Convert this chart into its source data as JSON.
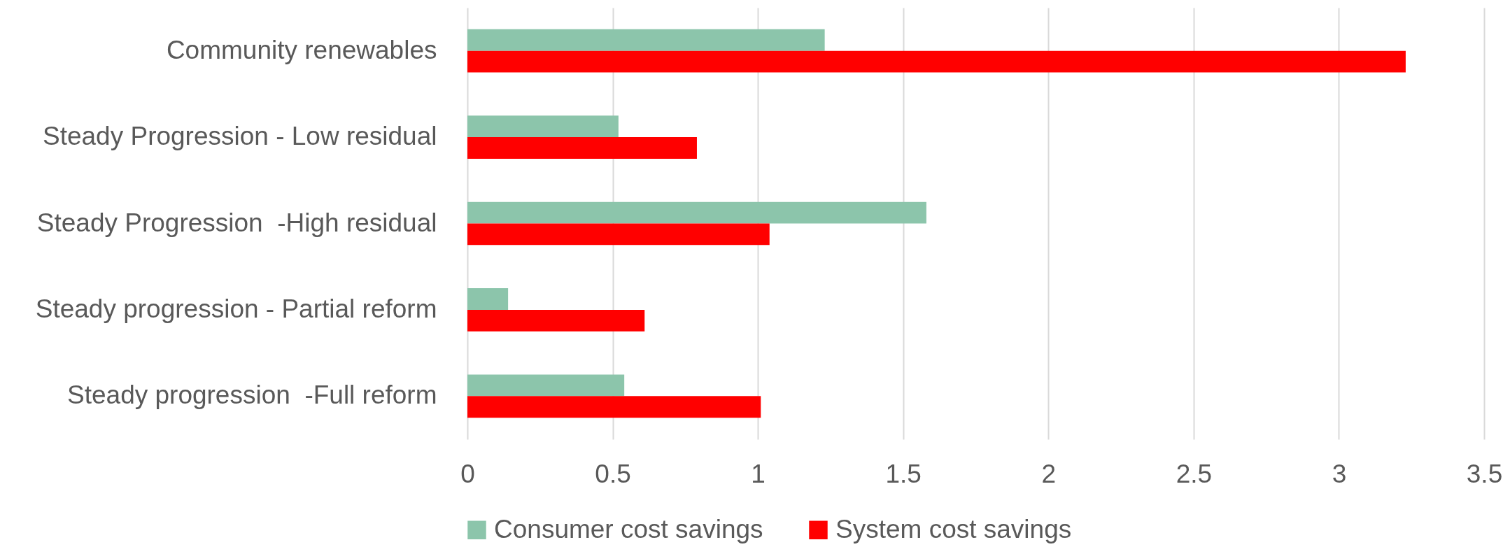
{
  "chart_data": {
    "type": "bar",
    "orientation": "horizontal",
    "categories": [
      "Community renewables",
      "Steady Progression - Low residual",
      "Steady Progression  -High residual",
      "Steady progression - Partial reform",
      "Steady progression  -Full reform"
    ],
    "series": [
      {
        "name": "Consumer cost savings",
        "color": "#8cc5ab",
        "values": [
          1.23,
          0.52,
          1.58,
          0.14,
          0.54
        ]
      },
      {
        "name": "System cost savings",
        "color": "#ff0000",
        "values": [
          3.23,
          0.79,
          1.04,
          0.61,
          1.01
        ]
      }
    ],
    "xlim": [
      0,
      3.5
    ],
    "xticks": [
      0,
      0.5,
      1,
      1.5,
      2,
      2.5,
      3,
      3.5
    ],
    "grid": "x",
    "legend": "bottom"
  }
}
